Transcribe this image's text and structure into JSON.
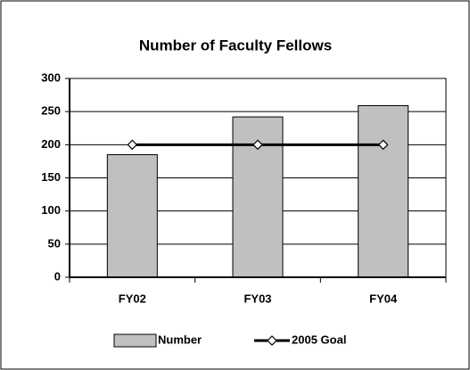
{
  "chart_data": {
    "type": "bar",
    "title": "Number of  Faculty Fellows",
    "categories": [
      "FY02",
      "FY03",
      "FY04"
    ],
    "series": [
      {
        "name": "Number",
        "color": "#c0c0c0",
        "values": [
          185,
          242,
          259
        ]
      },
      {
        "name": "2005 Goal",
        "color": "#000000",
        "type": "line",
        "values": [
          200,
          200,
          200
        ]
      }
    ],
    "ylim": [
      0,
      300
    ],
    "yticks": [
      0,
      50,
      100,
      150,
      200,
      250,
      300
    ],
    "grid": true,
    "legend": "bottom"
  }
}
